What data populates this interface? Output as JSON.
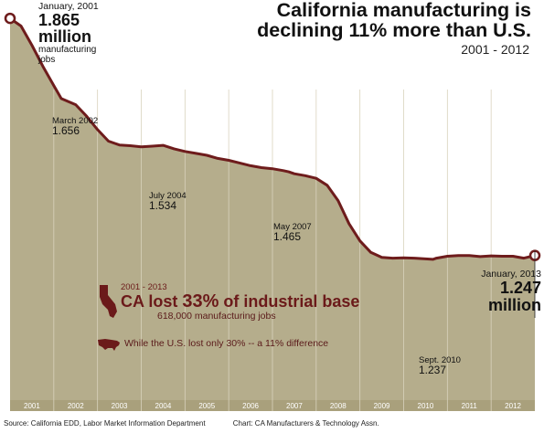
{
  "colors": {
    "area_fill": "#b5ad8c",
    "line": "#6e1c1c",
    "year_band": "#a9a07c",
    "accent_text": "#6b1a1a"
  },
  "title": {
    "line1": "California manufacturing is",
    "line2": "declining 11% more than U.S.",
    "years": "2001 - 2012"
  },
  "start_label": {
    "date": "January, 2001",
    "value": "1.865",
    "unit": "million",
    "desc": "manufacturing jobs"
  },
  "end_label": {
    "date": "January, 2013",
    "value": "1.247",
    "unit": "million"
  },
  "annotations": [
    {
      "date": "March 2002",
      "value": "1.656"
    },
    {
      "date": "July 2004",
      "value": "1.534"
    },
    {
      "date": "May 2007",
      "value": "1.465"
    },
    {
      "date": "Sept. 2010",
      "value": "1.237"
    }
  ],
  "callout": {
    "range": "2001 - 2013",
    "head_pre": "CA lost ",
    "head_pct": "33%",
    "head_post": " of industrial base",
    "jobs": "618,000 manufacturing jobs",
    "us_note": "While the U.S. lost only 30% -- a 11% difference",
    "ca_icon": "california-map-icon",
    "us_icon": "usa-map-icon"
  },
  "footer": {
    "source": "Source: California EDD, Labor Market Information Department",
    "credit": "Chart: CA Manufacturers & Technology Assn."
  },
  "chart_data": {
    "type": "area",
    "ylabel": "",
    "xlabel": "",
    "ylim": [
      0.87,
      1.87
    ],
    "x_ticks": [
      "2001",
      "2002",
      "2003",
      "2004",
      "2005",
      "2006",
      "2007",
      "2008",
      "2009",
      "2010",
      "2011",
      "2012"
    ],
    "series": [
      {
        "name": "",
        "x": [
          2001.0,
          2001.25,
          2001.5,
          2001.75,
          2002.0,
          2002.17,
          2002.5,
          2002.75,
          2003.0,
          2003.25,
          2003.5,
          2003.75,
          2004.0,
          2004.25,
          2004.5,
          2004.75,
          2005.0,
          2005.25,
          2005.5,
          2005.75,
          2006.0,
          2006.25,
          2006.5,
          2006.75,
          2007.0,
          2007.25,
          2007.37,
          2007.5,
          2007.75,
          2008.0,
          2008.25,
          2008.5,
          2008.75,
          2009.0,
          2009.25,
          2009.5,
          2009.75,
          2010.0,
          2010.25,
          2010.5,
          2010.67,
          2010.75,
          2011.0,
          2011.25,
          2011.5,
          2011.75,
          2012.0,
          2012.25,
          2012.5,
          2012.75,
          2013.0
        ],
        "values": [
          1.865,
          1.845,
          1.795,
          1.74,
          1.69,
          1.656,
          1.64,
          1.61,
          1.575,
          1.545,
          1.535,
          1.533,
          1.53,
          1.532,
          1.534,
          1.525,
          1.518,
          1.513,
          1.508,
          1.5,
          1.495,
          1.488,
          1.481,
          1.476,
          1.473,
          1.468,
          1.465,
          1.46,
          1.455,
          1.448,
          1.43,
          1.39,
          1.33,
          1.285,
          1.255,
          1.242,
          1.24,
          1.241,
          1.24,
          1.238,
          1.237,
          1.24,
          1.245,
          1.247,
          1.247,
          1.244,
          1.246,
          1.245,
          1.245,
          1.24,
          1.247
        ]
      }
    ]
  }
}
